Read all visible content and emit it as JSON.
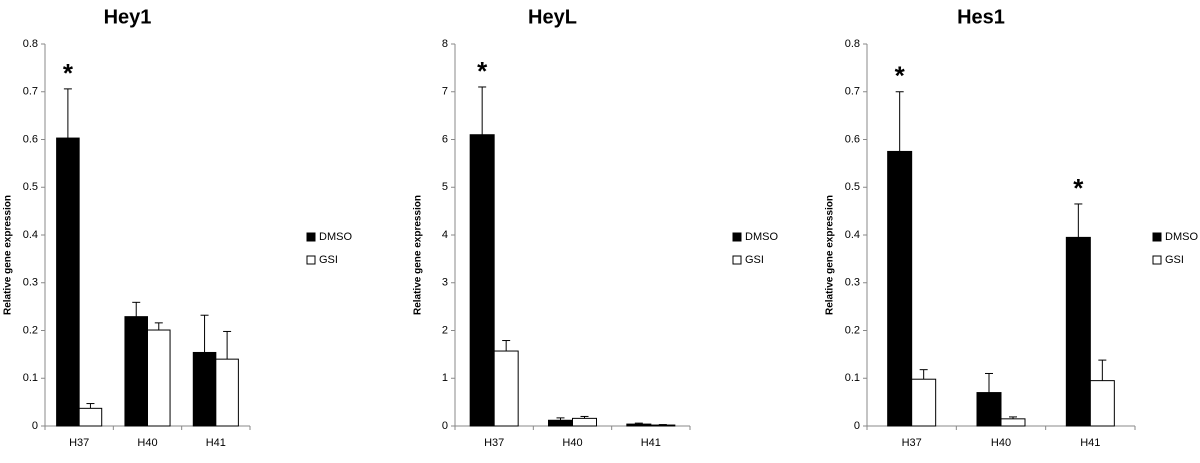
{
  "chart_data": [
    {
      "type": "bar",
      "title": "Hey1",
      "ylabel": "Relative gene expression",
      "categories": [
        "H37",
        "H40",
        "H41"
      ],
      "series": [
        {
          "name": "DMSO",
          "color": "#000000",
          "values": [
            0.603,
            0.229,
            0.154
          ],
          "errors": [
            0.103,
            0.03,
            0.078
          ],
          "significance": [
            "*",
            null,
            null
          ]
        },
        {
          "name": "GSI",
          "color": "#ffffff",
          "values": [
            0.037,
            0.201,
            0.14
          ],
          "errors": [
            0.01,
            0.015,
            0.058
          ]
        }
      ],
      "ylim": [
        0,
        0.8
      ],
      "yticks": [
        0,
        0.1,
        0.2,
        0.3,
        0.4,
        0.5,
        0.6,
        0.7,
        0.8
      ],
      "grid": false
    },
    {
      "type": "bar",
      "title": "HeyL",
      "ylabel": "Relative gene expression",
      "categories": [
        "H37",
        "H40",
        "H41"
      ],
      "series": [
        {
          "name": "DMSO",
          "color": "#000000",
          "values": [
            6.1,
            0.12,
            0.04
          ],
          "errors": [
            1.0,
            0.05,
            0.02
          ],
          "significance": [
            "*",
            null,
            null
          ]
        },
        {
          "name": "GSI",
          "color": "#ffffff",
          "values": [
            1.57,
            0.16,
            0.02
          ],
          "errors": [
            0.22,
            0.04,
            0.01
          ]
        }
      ],
      "ylim": [
        0,
        8
      ],
      "yticks": [
        0,
        1,
        2,
        3,
        4,
        5,
        6,
        7,
        8
      ],
      "grid": false
    },
    {
      "type": "bar",
      "title": "Hes1",
      "ylabel": "Relative gene expression",
      "categories": [
        "H37",
        "H40",
        "H41"
      ],
      "series": [
        {
          "name": "DMSO",
          "color": "#000000",
          "values": [
            0.575,
            0.07,
            0.395
          ],
          "errors": [
            0.125,
            0.04,
            0.07
          ],
          "significance": [
            "*",
            null,
            "*"
          ]
        },
        {
          "name": "GSI",
          "color": "#ffffff",
          "values": [
            0.098,
            0.015,
            0.095
          ],
          "errors": [
            0.02,
            0.004,
            0.043
          ]
        }
      ],
      "ylim": [
        0,
        0.8
      ],
      "yticks": [
        0,
        0.1,
        0.2,
        0.3,
        0.4,
        0.5,
        0.6,
        0.7,
        0.8
      ],
      "grid": false
    }
  ]
}
